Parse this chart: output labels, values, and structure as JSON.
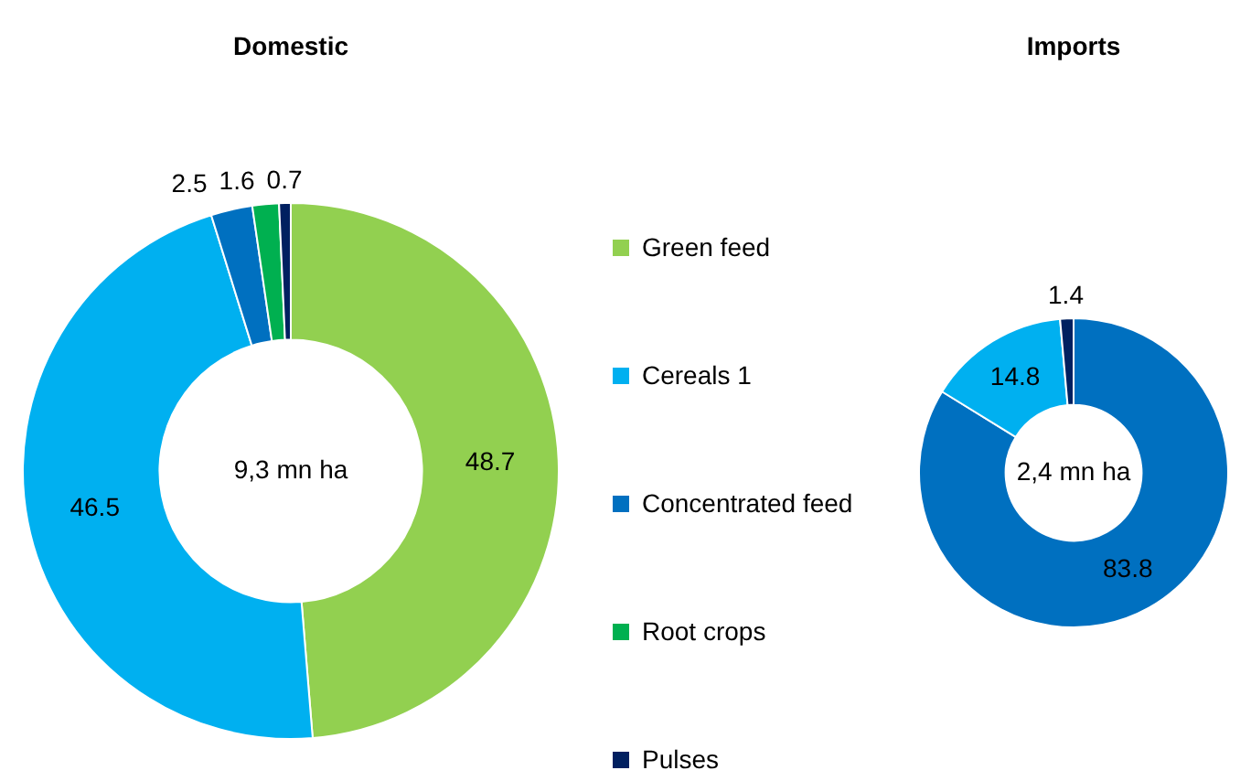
{
  "chart_data": [
    {
      "type": "donut",
      "title": "Domestic",
      "categories": [
        "Green feed",
        "Cereals 1",
        "Concentrated feed",
        "Root crops",
        "Pulses"
      ],
      "values": [
        48.7,
        46.5,
        2.5,
        1.6,
        0.7
      ],
      "colors": [
        "#92d050",
        "#00b0f0",
        "#0070c0",
        "#00b050",
        "#002060"
      ],
      "data_labels": true,
      "legend": "right",
      "annotations": [
        "9,3 mn ha"
      ]
    },
    {
      "type": "donut",
      "title": "Imports",
      "categories": [
        null,
        null,
        null
      ],
      "values": [
        83.8,
        14.8,
        1.4
      ],
      "colors": [
        "#0070c0",
        "#00b0f0",
        "#002060"
      ],
      "data_labels": true,
      "annotations": [
        "2,4 mn ha"
      ]
    }
  ]
}
